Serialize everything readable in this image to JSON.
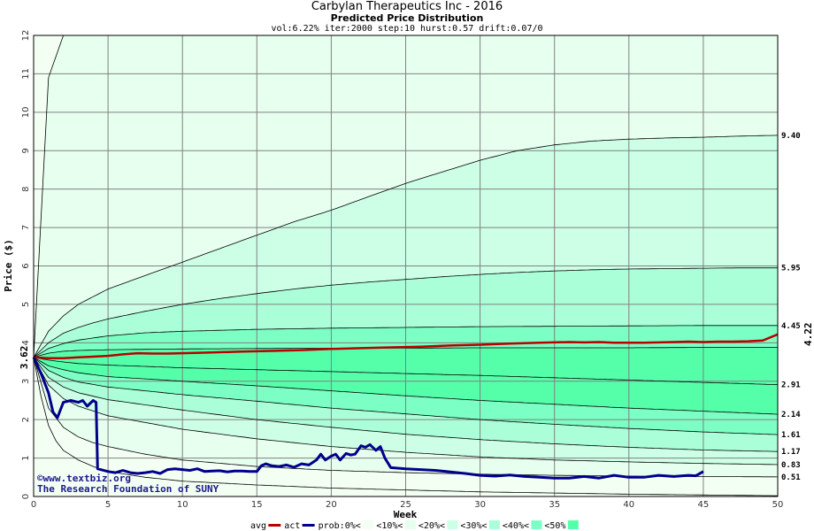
{
  "header": {
    "title": "Carbylan Therapeutics Inc - 2016",
    "subtitle": "Predicted Price Distribution",
    "params": "vol:6.22% iter:2000 step:10 hurst:0.57 drift:0.07/0"
  },
  "watermark": {
    "line1": "©www.textbiz.org",
    "line2": "The Research Foundation of SUNY"
  },
  "colors": {
    "avg": "#b80000",
    "actual": "#00008b",
    "band0": "#f4fff4",
    "band10": "#e6ffee",
    "band20": "#ccffe6",
    "band30": "#aaffd8",
    "band40": "#7cffc4",
    "band50": "#55ffaa",
    "grid": "#808080"
  },
  "legend": [
    {
      "label": "avg",
      "kind": "line",
      "color": "#b80000"
    },
    {
      "label": "act",
      "kind": "line",
      "color": "#00008b"
    },
    {
      "label": "prob:0%<",
      "kind": "swatch",
      "color": "#f4fff4"
    },
    {
      "label": "<10%<",
      "kind": "swatch",
      "color": "#e6ffee"
    },
    {
      "label": "<20%<",
      "kind": "swatch",
      "color": "#ccffe6"
    },
    {
      "label": "<30%<",
      "kind": "swatch",
      "color": "#aaffd8"
    },
    {
      "label": "<40%<",
      "kind": "swatch",
      "color": "#7cffc4"
    },
    {
      "label": "<50%",
      "kind": "swatch",
      "color": "#55ffaa"
    }
  ],
  "chart_data": {
    "type": "area",
    "title": "Predicted Price Distribution",
    "xlabel": "Week",
    "ylabel": "Price ($)",
    "xlim": [
      0,
      50
    ],
    "ylim": [
      0,
      12
    ],
    "x_ticks": [
      0,
      5,
      10,
      15,
      20,
      25,
      30,
      35,
      40,
      45,
      50
    ],
    "y_ticks": [
      0,
      1,
      2,
      3,
      4,
      5,
      6,
      7,
      8,
      9,
      10,
      11,
      12
    ],
    "grid": true,
    "legend_position": "bottom",
    "start_label": "3.62",
    "last_avg_label": "4.22",
    "right_labels": [
      "9.40",
      "5.95",
      "4.45",
      "2.91",
      "2.14",
      "1.61",
      "1.17",
      "0.83",
      "0.51"
    ],
    "percentile_curves": [
      {
        "x": [
          0,
          1,
          2,
          3,
          4,
          5,
          6,
          7,
          8,
          9,
          10,
          11,
          12,
          13,
          14,
          15,
          16,
          17,
          18,
          19,
          20,
          21,
          22,
          23,
          24,
          25,
          26,
          27,
          28,
          29,
          30,
          31,
          32,
          33,
          34,
          35,
          36,
          37,
          38,
          39,
          40,
          41,
          42,
          43,
          44,
          45,
          46,
          47,
          48,
          49,
          50
        ],
        "y": [
          3.62,
          10.9,
          12.0,
          12.0,
          12.0,
          12.0,
          12.0,
          12.0,
          12.0,
          12.0,
          12.0,
          12.0,
          12.0,
          12.0,
          12.0,
          12.0,
          12.0,
          12.0,
          12.0,
          12.0,
          12.0,
          12.0,
          12.0,
          12.0,
          12.0,
          12.0,
          12.0,
          12.0,
          12.0,
          12.0,
          12.0,
          12.0,
          12.0,
          12.0,
          12.0,
          12.0,
          12.0,
          12.0,
          12.0,
          12.0,
          12.0,
          12.0,
          12.0,
          12.0,
          12.0,
          12.0,
          12.0,
          12.0,
          12.0,
          12.0,
          12.0
        ]
      },
      {
        "x": [
          0,
          1,
          2,
          3,
          4,
          5,
          7.5,
          10,
          12.5,
          15,
          17.5,
          20,
          22.5,
          25,
          27.5,
          30,
          32.5,
          35,
          37.5,
          40,
          42.5,
          45,
          47.5,
          50
        ],
        "y": [
          3.62,
          4.3,
          4.7,
          5.0,
          5.2,
          5.4,
          5.75,
          6.1,
          6.45,
          6.8,
          7.15,
          7.45,
          7.8,
          8.15,
          8.45,
          8.75,
          9.0,
          9.15,
          9.25,
          9.3,
          9.33,
          9.35,
          9.38,
          9.4
        ]
      },
      {
        "x": [
          0,
          1,
          2,
          3,
          4,
          5,
          7.5,
          10,
          12.5,
          15,
          17.5,
          20,
          22.5,
          25,
          27.5,
          30,
          32.5,
          35,
          37.5,
          40,
          42.5,
          45,
          47.5,
          50
        ],
        "y": [
          3.62,
          4.0,
          4.25,
          4.4,
          4.52,
          4.62,
          4.82,
          5.0,
          5.15,
          5.28,
          5.4,
          5.5,
          5.58,
          5.65,
          5.72,
          5.78,
          5.83,
          5.87,
          5.9,
          5.92,
          5.93,
          5.94,
          5.95,
          5.95
        ]
      },
      {
        "x": [
          0,
          1,
          2,
          3,
          5,
          7.5,
          10,
          15,
          20,
          25,
          30,
          35,
          40,
          45,
          50
        ],
        "y": [
          3.62,
          3.85,
          3.98,
          4.07,
          4.18,
          4.26,
          4.3,
          4.35,
          4.38,
          4.4,
          4.42,
          4.43,
          4.44,
          4.45,
          4.45
        ]
      },
      {
        "x": [
          0,
          1,
          2,
          3,
          5,
          10,
          15,
          20,
          25,
          30,
          35,
          40,
          45,
          50
        ],
        "y": [
          3.62,
          3.73,
          3.78,
          3.8,
          3.82,
          3.84,
          3.85,
          3.86,
          3.86,
          3.87,
          3.87,
          3.87,
          3.88,
          3.88
        ]
      },
      {
        "x": [
          0,
          1,
          2,
          3,
          5,
          10,
          15,
          20,
          25,
          30,
          35,
          40,
          45,
          50
        ],
        "y": [
          3.62,
          3.55,
          3.5,
          3.46,
          3.42,
          3.35,
          3.3,
          3.25,
          3.2,
          3.15,
          3.09,
          3.03,
          2.97,
          2.91
        ]
      },
      {
        "x": [
          0,
          1,
          2,
          3,
          5,
          10,
          15,
          20,
          25,
          30,
          35,
          40,
          45,
          50
        ],
        "y": [
          3.62,
          3.4,
          3.3,
          3.22,
          3.12,
          3.0,
          2.88,
          2.75,
          2.62,
          2.5,
          2.4,
          2.3,
          2.22,
          2.14
        ]
      },
      {
        "x": [
          0,
          1,
          2,
          3,
          5,
          10,
          15,
          20,
          25,
          30,
          35,
          40,
          45,
          50
        ],
        "y": [
          3.62,
          3.28,
          3.1,
          2.98,
          2.85,
          2.65,
          2.48,
          2.3,
          2.15,
          2.0,
          1.88,
          1.77,
          1.68,
          1.61
        ]
      },
      {
        "x": [
          0,
          1,
          2,
          3,
          5,
          10,
          15,
          20,
          25,
          30,
          35,
          40,
          45,
          50
        ],
        "y": [
          3.62,
          3.1,
          2.85,
          2.7,
          2.52,
          2.25,
          2.0,
          1.8,
          1.62,
          1.48,
          1.37,
          1.28,
          1.21,
          1.17
        ]
      },
      {
        "x": [
          0,
          1,
          2,
          3,
          5,
          10,
          15,
          20,
          25,
          30,
          35,
          40,
          45,
          50
        ],
        "y": [
          3.62,
          2.9,
          2.55,
          2.35,
          2.1,
          1.75,
          1.5,
          1.3,
          1.15,
          1.03,
          0.95,
          0.9,
          0.86,
          0.83
        ]
      },
      {
        "x": [
          0,
          1,
          1.5,
          2,
          3,
          4,
          5,
          7.5,
          10,
          15,
          20,
          25,
          30,
          35,
          40,
          45,
          50
        ],
        "y": [
          3.62,
          2.3,
          2.05,
          1.8,
          1.55,
          1.4,
          1.3,
          1.1,
          0.95,
          0.78,
          0.68,
          0.62,
          0.58,
          0.55,
          0.53,
          0.52,
          0.51
        ]
      },
      {
        "x": [
          0,
          0.5,
          1,
          1.5,
          2,
          3,
          4,
          5,
          7.5,
          10,
          15,
          20,
          25,
          30,
          35,
          40,
          45,
          50
        ],
        "y": [
          3.62,
          2.6,
          1.85,
          1.45,
          1.2,
          0.95,
          0.78,
          0.65,
          0.5,
          0.4,
          0.3,
          0.22,
          0.17,
          0.12,
          0.09,
          0.06,
          0.04,
          0.02
        ]
      }
    ],
    "band_fill_order": [
      "band0",
      "band10",
      "band20",
      "band30",
      "band40",
      "band50",
      "band50",
      "band40",
      "band30",
      "band20",
      "band10",
      "band0"
    ],
    "series": [
      {
        "name": "avg",
        "x": [
          0,
          1,
          2,
          3,
          4,
          5,
          6,
          7,
          8,
          9,
          10,
          12,
          14,
          16,
          18,
          20,
          22,
          24,
          26,
          28,
          30,
          32,
          34,
          36,
          37,
          38,
          39,
          40,
          41,
          42,
          43,
          44,
          45,
          46,
          47,
          48,
          49,
          50
        ],
        "y": [
          3.62,
          3.6,
          3.6,
          3.62,
          3.64,
          3.66,
          3.7,
          3.73,
          3.72,
          3.72,
          3.73,
          3.75,
          3.77,
          3.79,
          3.81,
          3.84,
          3.86,
          3.88,
          3.9,
          3.93,
          3.95,
          3.98,
          4.0,
          4.02,
          4.01,
          4.02,
          4.0,
          4.0,
          4.0,
          4.01,
          4.02,
          4.03,
          4.02,
          4.03,
          4.03,
          4.04,
          4.06,
          4.22
        ]
      },
      {
        "name": "act",
        "x": [
          0,
          0.5,
          1,
          1.3,
          1.6,
          2,
          2.5,
          3,
          3.3,
          3.6,
          4,
          4.2,
          4.3,
          4.5,
          5,
          5.5,
          6,
          6.5,
          7,
          7.5,
          8,
          8.5,
          9,
          9.5,
          10,
          10.5,
          11,
          11.5,
          12,
          12.5,
          13,
          13.5,
          14,
          14.5,
          15,
          15.3,
          15.6,
          16,
          16.5,
          17,
          17.5,
          18,
          18.5,
          19,
          19.3,
          19.6,
          20,
          20.3,
          20.6,
          21,
          21.3,
          21.6,
          22,
          22.3,
          22.6,
          23,
          23.3,
          23.6,
          24,
          25,
          26,
          27,
          28,
          29,
          30,
          31,
          32,
          33,
          34,
          35,
          36,
          37,
          38,
          39,
          40,
          41,
          42,
          43,
          44,
          44.5,
          45
        ],
        "y": [
          3.62,
          3.2,
          2.7,
          2.2,
          2.05,
          2.45,
          2.5,
          2.45,
          2.5,
          2.35,
          2.5,
          2.45,
          0.72,
          0.7,
          0.65,
          0.62,
          0.68,
          0.62,
          0.6,
          0.62,
          0.65,
          0.6,
          0.7,
          0.72,
          0.7,
          0.68,
          0.72,
          0.65,
          0.66,
          0.67,
          0.64,
          0.66,
          0.66,
          0.65,
          0.65,
          0.8,
          0.85,
          0.8,
          0.78,
          0.82,
          0.76,
          0.85,
          0.82,
          0.95,
          1.1,
          0.95,
          1.05,
          1.1,
          0.95,
          1.12,
          1.08,
          1.1,
          1.32,
          1.28,
          1.35,
          1.2,
          1.3,
          1.0,
          0.75,
          0.72,
          0.7,
          0.68,
          0.64,
          0.6,
          0.55,
          0.53,
          0.56,
          0.52,
          0.5,
          0.48,
          0.48,
          0.52,
          0.48,
          0.55,
          0.5,
          0.5,
          0.55,
          0.52,
          0.55,
          0.54,
          0.65
        ]
      }
    ]
  }
}
